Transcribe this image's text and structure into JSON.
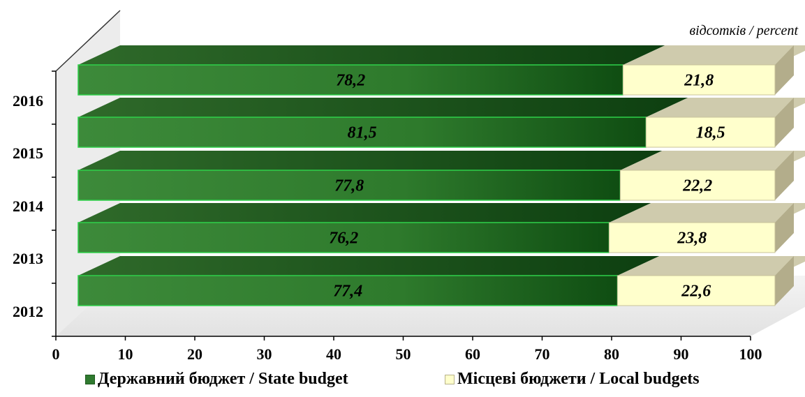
{
  "unit_note": "відсотків / percent",
  "chart_data": {
    "type": "bar",
    "orientation": "horizontal",
    "stacked": true,
    "three_d": true,
    "categories": [
      "2012",
      "2013",
      "2014",
      "2015",
      "2016"
    ],
    "series": [
      {
        "name": "Державний  бюджет / State budget",
        "values": [
          77.4,
          76.2,
          77.8,
          81.5,
          78.2
        ],
        "labels": [
          "77,4",
          "76,2",
          "77,8",
          "81,5",
          "78,2"
        ],
        "color": "#2f7a2f"
      },
      {
        "name": "Місцеві бюджети / Local budgets",
        "values": [
          22.6,
          23.8,
          22.2,
          18.5,
          21.8
        ],
        "labels": [
          "22,6",
          "23,8",
          "22,2",
          "18,5",
          "21,8"
        ],
        "color": "#ffffcc"
      }
    ],
    "x_ticks": [
      "0",
      "10",
      "20",
      "30",
      "40",
      "50",
      "60",
      "70",
      "80",
      "90",
      "100"
    ],
    "xlim": [
      0,
      100
    ],
    "legend_position": "bottom"
  }
}
